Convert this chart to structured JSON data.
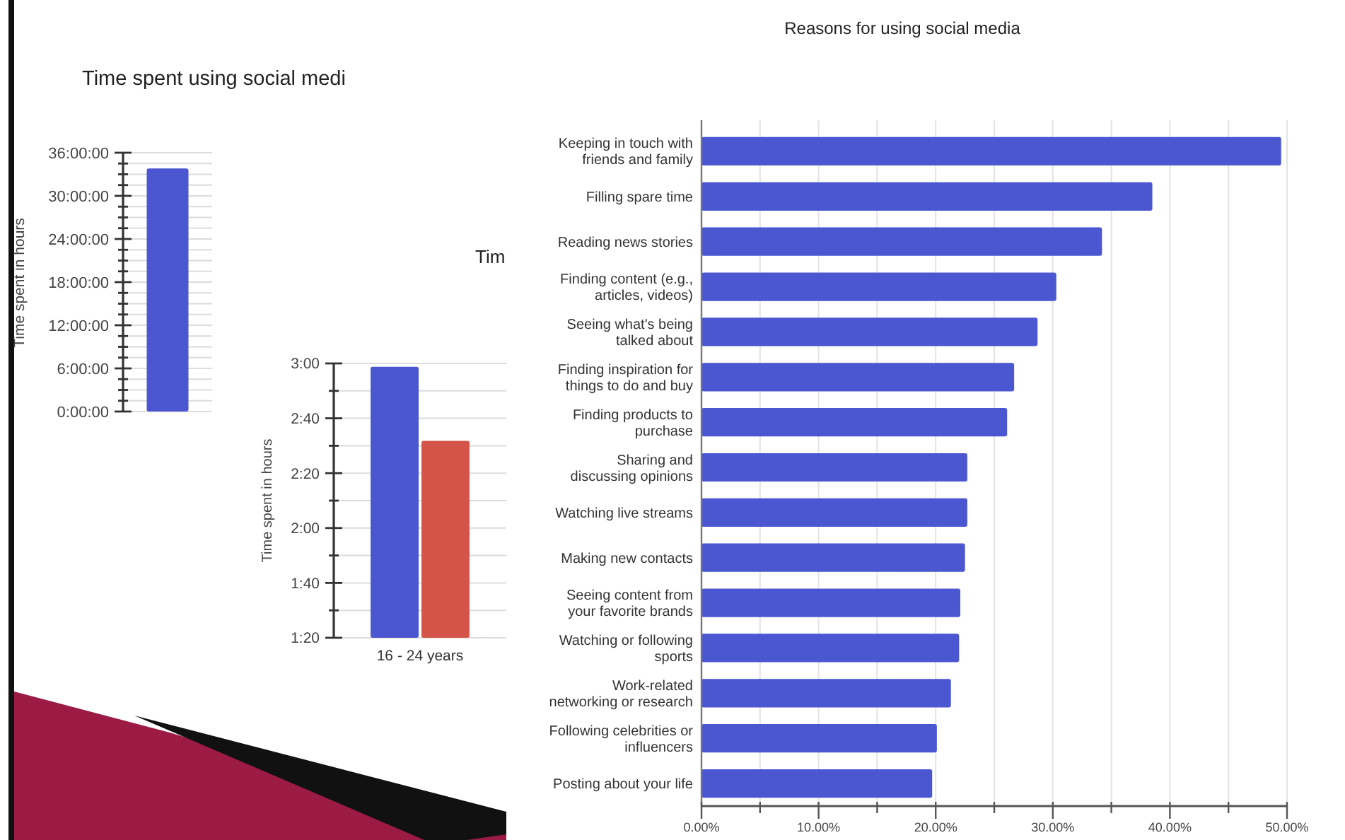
{
  "chart_data": [
    {
      "type": "bar",
      "title": "Time spent using social medi",
      "ylabel": "Time spent in hours",
      "categories": [
        null
      ],
      "values": [
        33.8
      ],
      "color": "#4a57d1",
      "ylim": [
        0,
        36
      ],
      "yticks": [
        {
          "value": 0,
          "label": "0:00:00"
        },
        {
          "value": 1.5,
          "label": null
        },
        {
          "value": 3,
          "label": null
        },
        {
          "value": 4.5,
          "label": null
        },
        {
          "value": 6,
          "label": "6:00:00"
        },
        {
          "value": 7.5,
          "label": null
        },
        {
          "value": 9,
          "label": null
        },
        {
          "value": 10.5,
          "label": null
        },
        {
          "value": 12,
          "label": "12:00:00"
        },
        {
          "value": 13.5,
          "label": null
        },
        {
          "value": 15,
          "label": null
        },
        {
          "value": 16.5,
          "label": null
        },
        {
          "value": 18,
          "label": "18:00:00"
        },
        {
          "value": 19.5,
          "label": null
        },
        {
          "value": 21,
          "label": null
        },
        {
          "value": 22.5,
          "label": null
        },
        {
          "value": 24,
          "label": "24:00:00"
        },
        {
          "value": 25.5,
          "label": null
        },
        {
          "value": 27,
          "label": null
        },
        {
          "value": 28.5,
          "label": null
        },
        {
          "value": 30,
          "label": "30:00:00"
        },
        {
          "value": 31.5,
          "label": null
        },
        {
          "value": 33,
          "label": null
        },
        {
          "value": 34.5,
          "label": null
        },
        {
          "value": 36,
          "label": "36:00:00"
        }
      ],
      "grid": "y"
    },
    {
      "type": "bar",
      "title": "Tim",
      "ylabel": "Time spent in hours",
      "categories": [
        "16 - 24 years"
      ],
      "series": [
        {
          "color": "#4a57d1",
          "values": [
            2.98
          ]
        },
        {
          "color": "#d5544a",
          "values": [
            2.53
          ]
        }
      ],
      "ylim": [
        1.3333,
        3
      ],
      "yticks": [
        {
          "value": 1.3333,
          "label": "1:20"
        },
        {
          "value": 1.5,
          "label": null
        },
        {
          "value": 1.6667,
          "label": "1:40"
        },
        {
          "value": 1.8333,
          "label": null
        },
        {
          "value": 2,
          "label": "2:00"
        },
        {
          "value": 2.1667,
          "label": null
        },
        {
          "value": 2.3333,
          "label": "2:20"
        },
        {
          "value": 2.5,
          "label": null
        },
        {
          "value": 2.6667,
          "label": "2:40"
        },
        {
          "value": 2.8333,
          "label": null
        },
        {
          "value": 3,
          "label": "3:00"
        }
      ],
      "grid": "y"
    },
    {
      "type": "bar",
      "orientation": "horizontal",
      "title": "Reasons for using social media",
      "categories": [
        "Keeping in touch with friends and family",
        "Filling spare time",
        "Reading news stories",
        "Finding content (e.g., articles, videos)",
        "Seeing what's being talked about",
        "Finding inspiration for things to do and buy",
        "Finding products to purchase",
        "Sharing and discussing opinions",
        "Watching live streams",
        "Making new contacts",
        "Seeing content from your favorite brands",
        "Watching or following sports",
        "Work-related networking or research",
        "Following celebrities or influencers",
        "Posting about your life"
      ],
      "values": [
        49.5,
        38.5,
        34.2,
        30.3,
        28.7,
        26.7,
        26.1,
        22.7,
        22.7,
        22.5,
        22.1,
        22.0,
        21.3,
        20.1,
        19.7
      ],
      "color": "#4a57d1",
      "xlim": [
        0,
        50
      ],
      "xticks": [
        {
          "value": 0,
          "label": "0.00%"
        },
        {
          "value": 5,
          "label": null
        },
        {
          "value": 10,
          "label": "10.00%"
        },
        {
          "value": 15,
          "label": null
        },
        {
          "value": 20,
          "label": "20.00%"
        },
        {
          "value": 25,
          "label": null
        },
        {
          "value": 30,
          "label": "30.00%"
        },
        {
          "value": 35,
          "label": null
        },
        {
          "value": 40,
          "label": "40.00%"
        },
        {
          "value": 45,
          "label": null
        },
        {
          "value": 50,
          "label": "50.00%"
        }
      ],
      "grid": "x"
    }
  ]
}
